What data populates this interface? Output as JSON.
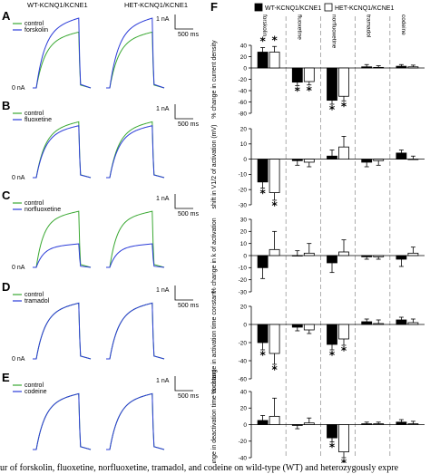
{
  "left_panel": {
    "headers": [
      "WT-KCNQ1/KCNE1",
      "HET-KCNQ1/KCNE1"
    ],
    "scale_current": "1 nA",
    "scale_time": "500 ms",
    "zero_label": "0 nA",
    "colors": {
      "control": "#3aa832",
      "drug": "#2a3bd8"
    },
    "rows": [
      {
        "letter": "A",
        "control": "control",
        "drug": "forskolin",
        "drug_amp_fraction": 1.25,
        "show_zero": true
      },
      {
        "letter": "B",
        "control": "control",
        "drug": "fluoxetine",
        "drug_amp_fraction": 0.93,
        "show_zero": true
      },
      {
        "letter": "C",
        "control": "control",
        "drug": "norfluoxetine",
        "drug_amp_fraction": 0.42,
        "show_zero": true
      },
      {
        "letter": "D",
        "control": "control",
        "drug": "tramadol",
        "drug_amp_fraction": 1.0,
        "show_zero": true
      },
      {
        "letter": "E",
        "control": "control",
        "drug": "codeine",
        "drug_amp_fraction": 1.0,
        "show_zero": false
      }
    ]
  },
  "chart_data": {
    "type": "bar",
    "panel_letter": "F",
    "categories": [
      "forskolin",
      "fluoxetine",
      "norfluoxetine",
      "tramadol",
      "codeine"
    ],
    "series_names": [
      "WT-KCNQ1/KCNE1",
      "HET-KCNQ1/KCNE1"
    ],
    "series_colors": [
      "#000000",
      "#ffffff"
    ],
    "subplots": [
      {
        "ylabel": "% change in current density",
        "ylim": [
          -80,
          40
        ],
        "yticks": [
          -80,
          -60,
          -40,
          -20,
          0,
          20,
          40
        ],
        "series": [
          {
            "name": "WT-KCNQ1/KCNE1",
            "values": [
              28,
              -25,
              -57,
              2,
              3
            ],
            "errors": [
              8,
              6,
              7,
              4,
              3
            ]
          },
          {
            "name": "HET-KCNQ1/KCNE1",
            "values": [
              28,
              -24,
              -50,
              1,
              2
            ],
            "errors": [
              10,
              6,
              8,
              3,
              3
            ]
          }
        ],
        "stars": [
          [
            true,
            true,
            true,
            false,
            false
          ],
          [
            true,
            true,
            true,
            false,
            false
          ]
        ]
      },
      {
        "ylabel": "shift in V1/2 of activation (mV)",
        "ylim": [
          -30,
          20
        ],
        "yticks": [
          -30,
          -20,
          -10,
          0,
          10,
          20
        ],
        "series": [
          {
            "name": "WT-KCNQ1/KCNE1",
            "values": [
              -15,
              -1,
              2,
              -2,
              4
            ],
            "errors": [
              4,
              3,
              4,
              3,
              2
            ]
          },
          {
            "name": "HET-KCNQ1/KCNE1",
            "values": [
              -22,
              -2,
              8,
              -1,
              0
            ],
            "errors": [
              5,
              3,
              7,
              3,
              2
            ]
          }
        ],
        "stars": [
          [
            true,
            false,
            false,
            false,
            false
          ],
          [
            true,
            false,
            false,
            false,
            false
          ]
        ]
      },
      {
        "ylabel": "% change in k of activation",
        "ylim": [
          -30,
          30
        ],
        "yticks": [
          -30,
          -20,
          -10,
          0,
          10,
          20,
          30
        ],
        "series": [
          {
            "name": "WT-KCNQ1/KCNE1",
            "values": [
              -10,
              0,
              -6,
              -1,
              -3
            ],
            "errors": [
              9,
              4,
              8,
              2,
              6
            ]
          },
          {
            "name": "HET-KCNQ1/KCNE1",
            "values": [
              5,
              2,
              3,
              -1,
              2
            ],
            "errors": [
              15,
              8,
              10,
              2,
              5
            ]
          }
        ],
        "stars": [
          [
            false,
            false,
            false,
            false,
            false
          ],
          [
            false,
            false,
            false,
            false,
            false
          ]
        ]
      },
      {
        "ylabel": "% change in activation time constant",
        "ylim": [
          -60,
          20
        ],
        "yticks": [
          -60,
          -40,
          -20,
          0,
          20
        ],
        "series": [
          {
            "name": "WT-KCNQ1/KCNE1",
            "values": [
              -20,
              -3,
              -22,
              3,
              5
            ],
            "errors": [
              8,
              4,
              6,
              3,
              3
            ]
          },
          {
            "name": "HET-KCNQ1/KCNE1",
            "values": [
              -32,
              -6,
              -16,
              1,
              2
            ],
            "errors": [
              12,
              4,
              7,
              4,
              4
            ]
          }
        ],
        "stars": [
          [
            true,
            false,
            true,
            false,
            false
          ],
          [
            true,
            false,
            true,
            false,
            false
          ]
        ]
      },
      {
        "ylabel": "% change in deactivation time constant",
        "ylim": [
          -40,
          40
        ],
        "yticks": [
          -40,
          -20,
          0,
          20,
          40
        ],
        "series": [
          {
            "name": "WT-KCNQ1/KCNE1",
            "values": [
              5,
              -1,
              -16,
              1,
              3
            ],
            "errors": [
              6,
              4,
              5,
              2,
              3
            ]
          },
          {
            "name": "HET-KCNQ1/KCNE1",
            "values": [
              10,
              2,
              -33,
              1,
              1
            ],
            "errors": [
              22,
              6,
              7,
              2,
              3
            ]
          }
        ],
        "stars": [
          [
            false,
            false,
            true,
            false,
            false
          ],
          [
            false,
            false,
            true,
            false,
            false
          ]
        ]
      }
    ]
  },
  "caption": "ur of forskolin, fluoxetine, norfluoxetine, tramadol, and codeine on wild-type (WT) and heterozygously expre"
}
